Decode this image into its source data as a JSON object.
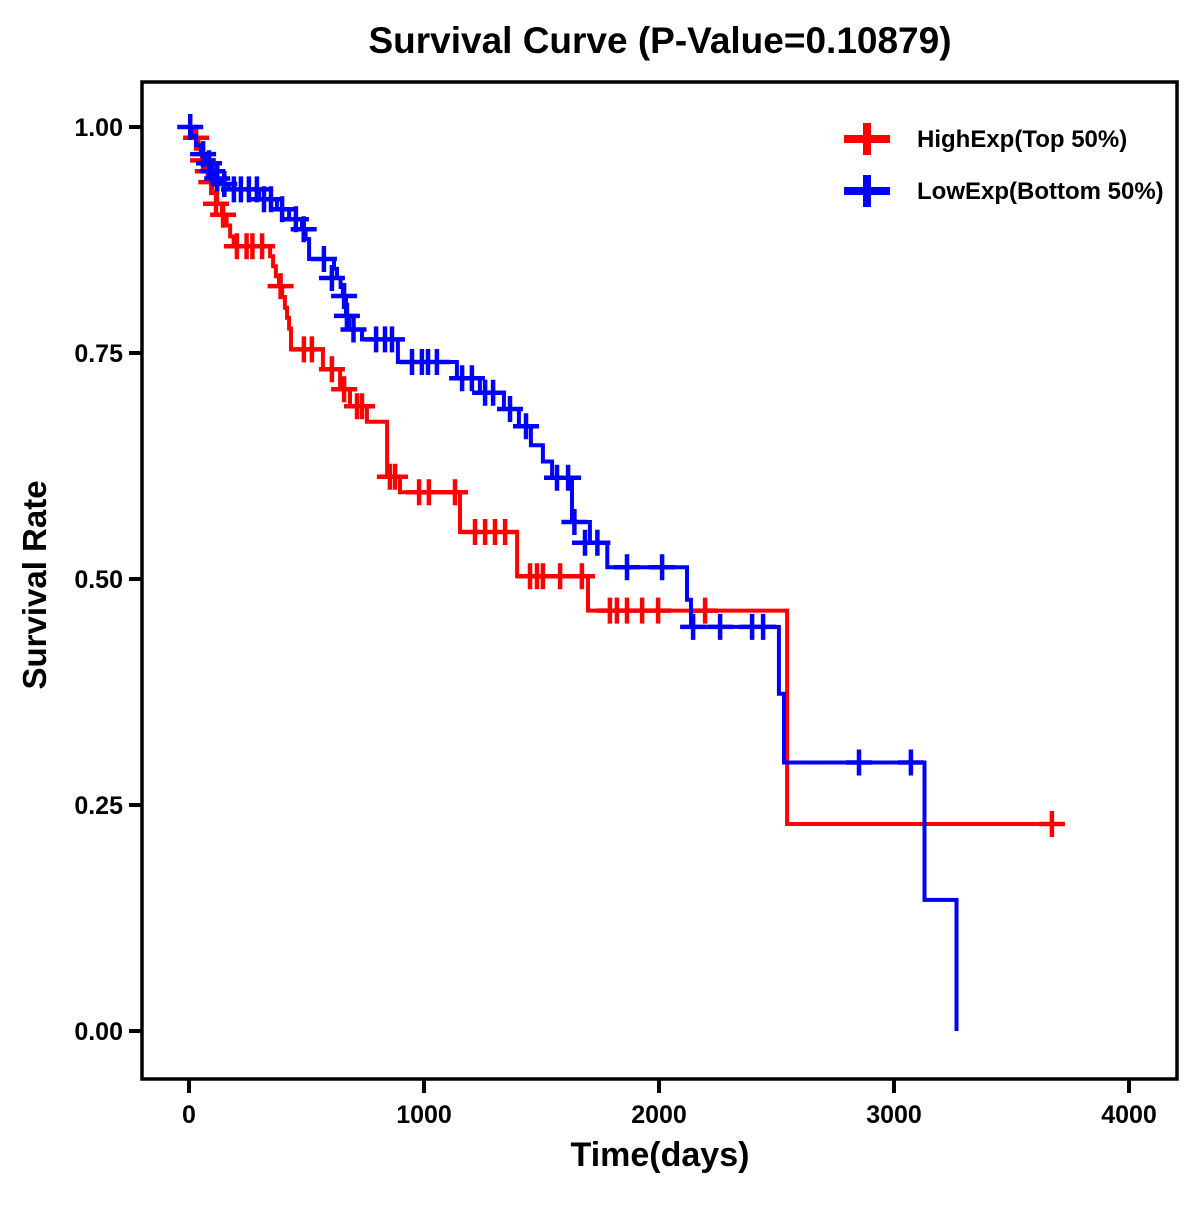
{
  "title": "Survival Curve (P-Value=0.10879)",
  "axes": {
    "x_label": "Time(days)",
    "y_label": "Survival Rate"
  },
  "legend": {
    "items": [
      {
        "label": "HighExp(Top 50%)",
        "color": "#ff0000",
        "marker": "plus-icon"
      },
      {
        "label": "LowExp(Bottom 50%)",
        "color": "#0000ff",
        "marker": "plus-icon"
      }
    ]
  },
  "chart_data": {
    "type": "line",
    "subtype": "kaplan-meier-survival-step",
    "title": "Survival Curve (P-Value=0.10879)",
    "p_value": 0.10879,
    "xlabel": "Time(days)",
    "ylabel": "Survival Rate",
    "xlim": [
      -200,
      4200
    ],
    "ylim": [
      -0.05,
      1.05
    ],
    "x_ticks": [
      0,
      1000,
      2000,
      3000,
      4000
    ],
    "x_tick_labels": [
      "0",
      "1000",
      "2000",
      "3000",
      "4000"
    ],
    "y_ticks": [
      1.0,
      0.75,
      0.5,
      0.25,
      0.0
    ],
    "y_tick_labels": [
      "1.00",
      "0.75",
      "0.50",
      "0.25",
      "0.00"
    ],
    "grid": false,
    "legend_position": "top-right",
    "series": [
      {
        "name": "HighExp(Top 50%)",
        "color": "#ff0000",
        "end_day": 3680,
        "steps": [
          [
            0,
            1.0
          ],
          [
            25,
            0.988
          ],
          [
            40,
            0.976
          ],
          [
            55,
            0.963
          ],
          [
            70,
            0.951
          ],
          [
            85,
            0.939
          ],
          [
            100,
            0.927
          ],
          [
            120,
            0.915
          ],
          [
            140,
            0.903
          ],
          [
            160,
            0.891
          ],
          [
            175,
            0.879
          ],
          [
            190,
            0.868
          ],
          [
            345,
            0.857
          ],
          [
            358,
            0.846
          ],
          [
            370,
            0.835
          ],
          [
            383,
            0.824
          ],
          [
            396,
            0.812
          ],
          [
            408,
            0.8
          ],
          [
            417,
            0.789
          ],
          [
            426,
            0.777
          ],
          [
            434,
            0.754
          ],
          [
            570,
            0.732
          ],
          [
            643,
            0.71
          ],
          [
            685,
            0.691
          ],
          [
            757,
            0.674
          ],
          [
            843,
            0.613
          ],
          [
            898,
            0.596
          ],
          [
            1153,
            0.552
          ],
          [
            1396,
            0.503
          ],
          [
            1698,
            0.465
          ],
          [
            2545,
            0.229
          ]
        ],
        "censors": [
          [
            30,
            0.988
          ],
          [
            60,
            0.963
          ],
          [
            80,
            0.951
          ],
          [
            95,
            0.939
          ],
          [
            115,
            0.915
          ],
          [
            145,
            0.903
          ],
          [
            204,
            0.868
          ],
          [
            245,
            0.868
          ],
          [
            270,
            0.868
          ],
          [
            311,
            0.868
          ],
          [
            390,
            0.824
          ],
          [
            489,
            0.754
          ],
          [
            523,
            0.754
          ],
          [
            608,
            0.732
          ],
          [
            660,
            0.71
          ],
          [
            715,
            0.691
          ],
          [
            736,
            0.691
          ],
          [
            855,
            0.613
          ],
          [
            877,
            0.613
          ],
          [
            979,
            0.596
          ],
          [
            1021,
            0.596
          ],
          [
            1132,
            0.596
          ],
          [
            1217,
            0.552
          ],
          [
            1260,
            0.552
          ],
          [
            1302,
            0.552
          ],
          [
            1345,
            0.552
          ],
          [
            1451,
            0.503
          ],
          [
            1481,
            0.503
          ],
          [
            1506,
            0.503
          ],
          [
            1579,
            0.503
          ],
          [
            1672,
            0.503
          ],
          [
            1791,
            0.465
          ],
          [
            1821,
            0.465
          ],
          [
            1864,
            0.465
          ],
          [
            1928,
            0.465
          ],
          [
            1996,
            0.465
          ],
          [
            2196,
            0.465
          ],
          [
            3672,
            0.229
          ]
        ]
      },
      {
        "name": "LowExp(Bottom 50%)",
        "color": "#0000ff",
        "end_day": 3266,
        "steps": [
          [
            0,
            1.0
          ],
          [
            10,
            0.99
          ],
          [
            30,
            0.98
          ],
          [
            50,
            0.97
          ],
          [
            70,
            0.96
          ],
          [
            90,
            0.951
          ],
          [
            110,
            0.943
          ],
          [
            140,
            0.937
          ],
          [
            170,
            0.931
          ],
          [
            298,
            0.92
          ],
          [
            374,
            0.909
          ],
          [
            426,
            0.898
          ],
          [
            481,
            0.887
          ],
          [
            496,
            0.876
          ],
          [
            511,
            0.854
          ],
          [
            617,
            0.843
          ],
          [
            630,
            0.833
          ],
          [
            645,
            0.823
          ],
          [
            655,
            0.813
          ],
          [
            668,
            0.791
          ],
          [
            681,
            0.776
          ],
          [
            736,
            0.765
          ],
          [
            889,
            0.74
          ],
          [
            1140,
            0.722
          ],
          [
            1238,
            0.706
          ],
          [
            1340,
            0.688
          ],
          [
            1404,
            0.669
          ],
          [
            1455,
            0.648
          ],
          [
            1506,
            0.63
          ],
          [
            1545,
            0.612
          ],
          [
            1630,
            0.563
          ],
          [
            1706,
            0.54
          ],
          [
            1780,
            0.513
          ],
          [
            2119,
            0.477
          ],
          [
            2136,
            0.447
          ],
          [
            2510,
            0.373
          ],
          [
            2532,
            0.297
          ],
          [
            3130,
            0.145
          ],
          [
            3266,
            0.0
          ]
        ],
        "censors": [
          [
            5,
            1.0
          ],
          [
            60,
            0.97
          ],
          [
            85,
            0.96
          ],
          [
            100,
            0.951
          ],
          [
            120,
            0.943
          ],
          [
            150,
            0.937
          ],
          [
            191,
            0.931
          ],
          [
            221,
            0.931
          ],
          [
            255,
            0.931
          ],
          [
            289,
            0.931
          ],
          [
            319,
            0.92
          ],
          [
            349,
            0.92
          ],
          [
            396,
            0.909
          ],
          [
            455,
            0.898
          ],
          [
            488,
            0.887
          ],
          [
            574,
            0.854
          ],
          [
            608,
            0.833
          ],
          [
            660,
            0.813
          ],
          [
            672,
            0.791
          ],
          [
            700,
            0.776
          ],
          [
            796,
            0.765
          ],
          [
            834,
            0.765
          ],
          [
            864,
            0.765
          ],
          [
            949,
            0.74
          ],
          [
            991,
            0.74
          ],
          [
            1017,
            0.74
          ],
          [
            1055,
            0.74
          ],
          [
            1162,
            0.722
          ],
          [
            1204,
            0.722
          ],
          [
            1260,
            0.706
          ],
          [
            1294,
            0.706
          ],
          [
            1366,
            0.688
          ],
          [
            1434,
            0.669
          ],
          [
            1566,
            0.612
          ],
          [
            1613,
            0.612
          ],
          [
            1640,
            0.563
          ],
          [
            1685,
            0.54
          ],
          [
            1738,
            0.54
          ],
          [
            1864,
            0.513
          ],
          [
            2013,
            0.513
          ],
          [
            2145,
            0.447
          ],
          [
            2260,
            0.447
          ],
          [
            2396,
            0.447
          ],
          [
            2443,
            0.447
          ],
          [
            2851,
            0.297
          ],
          [
            3072,
            0.297
          ]
        ]
      }
    ]
  }
}
